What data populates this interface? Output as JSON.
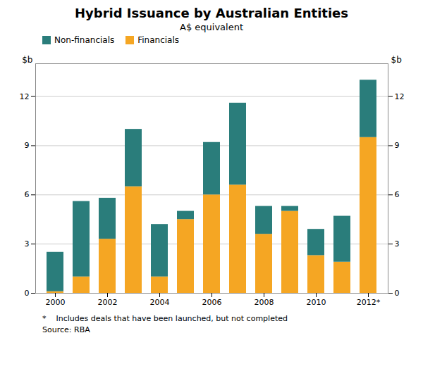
{
  "chart_data": {
    "type": "bar",
    "stacked": true,
    "title": "Hybrid Issuance by Australian Entities",
    "subtitle": "A$ equivalent",
    "ylabel": "$b",
    "y2label": "$b",
    "footnote": "*    Includes deals that have been launched, but not completed",
    "source": "Source: RBA",
    "categories": [
      "2000",
      null,
      "2002",
      null,
      "2004",
      null,
      "2006",
      null,
      "2008",
      null,
      "2010",
      null,
      "2012*"
    ],
    "series": [
      {
        "name": "Financials",
        "color": "#F5A623",
        "values": [
          0.1,
          1.0,
          3.3,
          6.5,
          1.0,
          4.5,
          6.0,
          6.6,
          3.6,
          5.0,
          2.3,
          1.9,
          9.5
        ]
      },
      {
        "name": "Non-financials",
        "color": "#2A7D7B",
        "values": [
          2.4,
          4.6,
          2.5,
          3.5,
          3.2,
          0.5,
          3.2,
          5.0,
          1.7,
          0.3,
          1.6,
          2.8,
          3.5
        ]
      }
    ],
    "ylim": [
      0,
      14
    ],
    "yticks": [
      0,
      3,
      6,
      9,
      12
    ],
    "y2lim": [
      0,
      14
    ],
    "y2ticks": [
      0,
      3,
      6,
      9,
      12
    ],
    "grid": true,
    "legend": "upper left"
  }
}
